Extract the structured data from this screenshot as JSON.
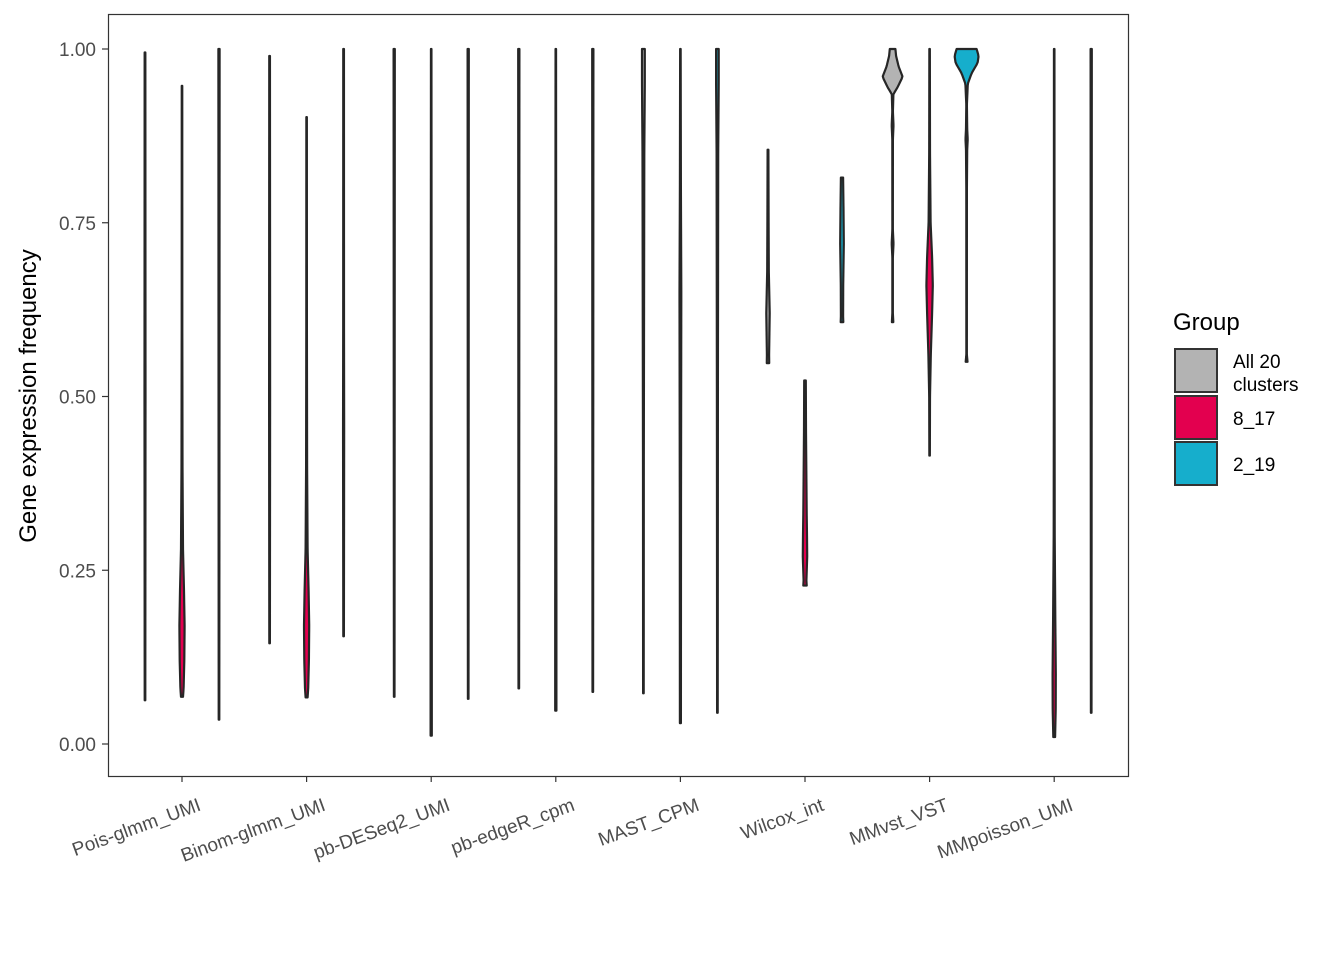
{
  "chart_data": {
    "type": "violin",
    "ylabel": "Gene expression frequency",
    "ylim": [
      -0.047,
      1.047
    ],
    "yticks": [
      0.0,
      0.25,
      0.5,
      0.75,
      1.0
    ],
    "ytick_labels": [
      "0.00",
      "0.25",
      "0.50",
      "0.75",
      "1.00"
    ],
    "categories": [
      "Pois-glmm_UMI",
      "Binom-glmm_UMI",
      "pb-DESeq2_UMI",
      "pb-edgeR_cpm",
      "MAST_CPM",
      "Wilcox_int",
      "MMvst_VST",
      "MMpoisson_UMI"
    ],
    "legend": {
      "title": "Group",
      "placement": "right",
      "entries": [
        {
          "label_line1": "All 20",
          "label_line2": "clusters",
          "color": "#B3B3B3"
        },
        {
          "label_line1": "8_17",
          "label_line2": "",
          "color": "#E3004F"
        },
        {
          "label_line1": "2_19",
          "label_line2": "",
          "color": "#16AECC"
        }
      ]
    },
    "series": [
      {
        "name": "All 20 clusters",
        "color": "#B3B3B3",
        "violins": [
          {
            "category": "Pois-glmm_UMI",
            "min": 0.063,
            "max": 0.995,
            "profile": [
              [
                0.063,
                0.3
              ],
              [
                0.5,
                0.5
              ],
              [
                0.995,
                0.35
              ]
            ]
          },
          {
            "category": "Binom-glmm_UMI",
            "min": 0.145,
            "max": 0.99,
            "profile": [
              [
                0.145,
                0.3
              ],
              [
                0.5,
                0.5
              ],
              [
                0.99,
                0.35
              ]
            ]
          },
          {
            "category": "pb-DESeq2_UMI",
            "min": 0.068,
            "max": 1.0,
            "profile": [
              [
                0.068,
                0.3
              ],
              [
                0.5,
                0.45
              ],
              [
                1.0,
                0.6
              ]
            ]
          },
          {
            "category": "pb-edgeR_cpm",
            "min": 0.08,
            "max": 1.0,
            "profile": [
              [
                0.08,
                0.3
              ],
              [
                0.5,
                0.45
              ],
              [
                1.0,
                0.6
              ]
            ]
          },
          {
            "category": "MAST_CPM",
            "min": 0.073,
            "max": 1.0,
            "profile": [
              [
                0.073,
                0.3
              ],
              [
                0.4,
                0.4
              ],
              [
                0.85,
                0.9
              ],
              [
                0.95,
                1.4
              ],
              [
                1.0,
                1.4
              ]
            ]
          },
          {
            "category": "Wilcox_int",
            "min": 0.548,
            "max": 0.855,
            "profile": [
              [
                0.548,
                1.2
              ],
              [
                0.56,
                1.1
              ],
              [
                0.62,
                1.7
              ],
              [
                0.68,
                0.8
              ],
              [
                0.75,
                0.6
              ],
              [
                0.855,
                0.4
              ]
            ]
          },
          {
            "category": "MMvst_VST",
            "min": 0.607,
            "max": 1.0,
            "profile": [
              [
                0.607,
                0.7
              ],
              [
                0.62,
                0.25
              ],
              [
                0.7,
                0.25
              ],
              [
                0.72,
                0.9
              ],
              [
                0.74,
                0.25
              ],
              [
                0.87,
                0.3
              ],
              [
                0.89,
                0.9
              ],
              [
                0.91,
                0.3
              ],
              [
                0.935,
                0.8
              ],
              [
                0.945,
                5.0
              ],
              [
                0.96,
                10.0
              ],
              [
                0.975,
                6.0
              ],
              [
                0.99,
                3.5
              ],
              [
                1.0,
                2.8
              ]
            ]
          }
        ]
      },
      {
        "name": "8_17",
        "color": "#E3004F",
        "violins": [
          {
            "category": "Pois-glmm_UMI",
            "min": 0.068,
            "max": 0.947,
            "profile": [
              [
                0.068,
                1.0
              ],
              [
                0.08,
                1.6
              ],
              [
                0.12,
                2.3
              ],
              [
                0.17,
                2.6
              ],
              [
                0.22,
                2.0
              ],
              [
                0.28,
                1.0
              ],
              [
                0.4,
                0.5
              ],
              [
                0.6,
                0.3
              ],
              [
                0.947,
                0.25
              ]
            ]
          },
          {
            "category": "Binom-glmm_UMI",
            "min": 0.067,
            "max": 0.902,
            "profile": [
              [
                0.067,
                1.0
              ],
              [
                0.08,
                1.6
              ],
              [
                0.12,
                2.3
              ],
              [
                0.17,
                2.6
              ],
              [
                0.22,
                2.0
              ],
              [
                0.28,
                1.0
              ],
              [
                0.4,
                0.5
              ],
              [
                0.6,
                0.3
              ],
              [
                0.902,
                0.25
              ]
            ]
          },
          {
            "category": "pb-DESeq2_UMI",
            "min": 0.012,
            "max": 1.0,
            "profile": [
              [
                0.012,
                0.6
              ],
              [
                0.2,
                0.6
              ],
              [
                0.5,
                0.4
              ],
              [
                1.0,
                0.25
              ]
            ]
          },
          {
            "category": "pb-edgeR_cpm",
            "min": 0.048,
            "max": 1.0,
            "profile": [
              [
                0.048,
                0.6
              ],
              [
                0.2,
                0.6
              ],
              [
                0.5,
                0.4
              ],
              [
                1.0,
                0.25
              ]
            ]
          },
          {
            "category": "MAST_CPM",
            "min": 0.03,
            "max": 1.0,
            "profile": [
              [
                0.03,
                0.5
              ],
              [
                0.35,
                0.6
              ],
              [
                0.65,
                0.9
              ],
              [
                0.8,
                0.5
              ],
              [
                1.0,
                0.25
              ]
            ]
          },
          {
            "category": "Wilcox_int",
            "min": 0.228,
            "max": 0.523,
            "profile": [
              [
                0.228,
                1.7
              ],
              [
                0.235,
                1.4
              ],
              [
                0.27,
                2.2
              ],
              [
                0.3,
                2.0
              ],
              [
                0.33,
                1.7
              ],
              [
                0.38,
                1.4
              ],
              [
                0.45,
                1.0
              ],
              [
                0.523,
                0.8
              ]
            ]
          },
          {
            "category": "MMvst_VST",
            "min": 0.415,
            "max": 1.0,
            "profile": [
              [
                0.415,
                0.25
              ],
              [
                0.5,
                0.4
              ],
              [
                0.56,
                1.2
              ],
              [
                0.62,
                2.5
              ],
              [
                0.66,
                3.2
              ],
              [
                0.7,
                2.5
              ],
              [
                0.75,
                1.0
              ],
              [
                0.85,
                0.4
              ],
              [
                1.0,
                0.25
              ]
            ]
          },
          {
            "category": "MMpoisson_UMI",
            "min": 0.01,
            "max": 1.0,
            "profile": [
              [
                0.01,
                0.9
              ],
              [
                0.05,
                1.5
              ],
              [
                0.1,
                1.6
              ],
              [
                0.18,
                1.1
              ],
              [
                0.3,
                0.5
              ],
              [
                0.6,
                0.3
              ],
              [
                1.0,
                0.25
              ]
            ]
          }
        ]
      },
      {
        "name": "2_19",
        "color": "#16AECC",
        "violins": [
          {
            "category": "Pois-glmm_UMI",
            "min": 0.035,
            "max": 1.0,
            "profile": [
              [
                0.035,
                0.3
              ],
              [
                0.5,
                0.45
              ],
              [
                1.0,
                0.6
              ]
            ]
          },
          {
            "category": "Binom-glmm_UMI",
            "min": 0.155,
            "max": 1.0,
            "profile": [
              [
                0.155,
                0.3
              ],
              [
                0.45,
                0.55
              ],
              [
                0.6,
                0.4
              ],
              [
                1.0,
                0.35
              ]
            ]
          },
          {
            "category": "pb-DESeq2_UMI",
            "min": 0.065,
            "max": 1.0,
            "profile": [
              [
                0.065,
                0.3
              ],
              [
                0.5,
                0.45
              ],
              [
                1.0,
                0.6
              ]
            ]
          },
          {
            "category": "pb-edgeR_cpm",
            "min": 0.075,
            "max": 1.0,
            "profile": [
              [
                0.075,
                0.3
              ],
              [
                0.5,
                0.45
              ],
              [
                1.0,
                0.6
              ]
            ]
          },
          {
            "category": "MAST_CPM",
            "min": 0.045,
            "max": 1.0,
            "profile": [
              [
                0.045,
                0.3
              ],
              [
                0.5,
                0.5
              ],
              [
                0.85,
                0.8
              ],
              [
                0.95,
                1.3
              ],
              [
                1.0,
                1.3
              ]
            ]
          },
          {
            "category": "Wilcox_int",
            "min": 0.607,
            "max": 0.815,
            "profile": [
              [
                0.607,
                1.3
              ],
              [
                0.615,
                1.1
              ],
              [
                0.66,
                1.2
              ],
              [
                0.72,
                1.8
              ],
              [
                0.77,
                1.5
              ],
              [
                0.815,
                1.1
              ]
            ]
          },
          {
            "category": "MMvst_VST",
            "min": 0.55,
            "max": 1.0,
            "profile": [
              [
                0.55,
                0.9
              ],
              [
                0.56,
                0.25
              ],
              [
                0.8,
                0.3
              ],
              [
                0.855,
                0.6
              ],
              [
                0.87,
                1.1
              ],
              [
                0.885,
                0.6
              ],
              [
                0.92,
                0.3
              ],
              [
                0.95,
                1.2
              ],
              [
                0.965,
                5.0
              ],
              [
                0.98,
                11.0
              ],
              [
                0.99,
                12.0
              ],
              [
                1.0,
                10.0
              ]
            ]
          },
          {
            "category": "MMpoisson_UMI",
            "min": 0.045,
            "max": 1.0,
            "profile": [
              [
                0.045,
                0.3
              ],
              [
                0.5,
                0.45
              ],
              [
                1.0,
                0.6
              ]
            ]
          }
        ]
      }
    ]
  }
}
